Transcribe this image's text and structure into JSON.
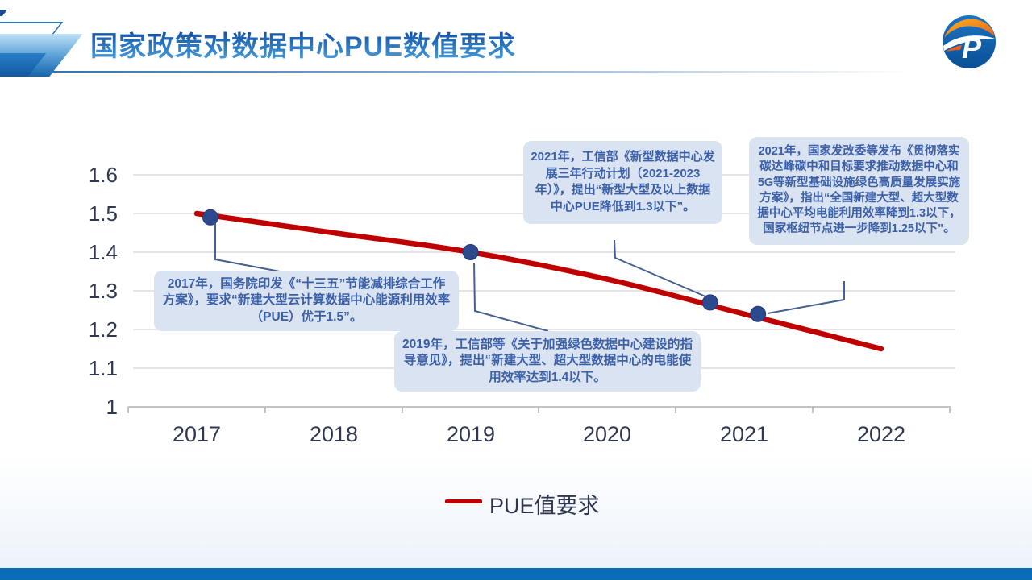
{
  "slide": {
    "title": "国家政策对数据中心PUE数值要求"
  },
  "colors": {
    "title_blue": "#1261ad",
    "line_red": "#c00000",
    "marker_blue": "#2d4a8e",
    "callout_bg": "#dae3f1",
    "callout_text": "#3c60a8",
    "connector_blue": "#46618f",
    "footer_bar_blue": "#0b6cb8"
  },
  "chart_data": {
    "type": "line",
    "title": "",
    "xlabel": "",
    "ylabel": "",
    "x_categories": [
      "2017",
      "2018",
      "2019",
      "2020",
      "2021",
      "2022"
    ],
    "y_ticks": [
      "1",
      "1.1",
      "1.2",
      "1.3",
      "1.4",
      "1.5",
      "1.6"
    ],
    "ylim": [
      1.0,
      1.6
    ],
    "grid": "horizontal",
    "legend_position": "bottom",
    "series": [
      {
        "name": "PUE值要求",
        "color": "#c00000",
        "x": [
          2017,
          2018,
          2019,
          2020,
          2021,
          2022
        ],
        "values": [
          1.5,
          1.45,
          1.4,
          1.33,
          1.24,
          1.15
        ]
      }
    ],
    "markers": [
      {
        "year": 2017.1,
        "value": 1.49
      },
      {
        "year": 2019.0,
        "value": 1.4
      },
      {
        "year": 2020.75,
        "value": 1.27
      },
      {
        "year": 2021.1,
        "value": 1.24
      }
    ],
    "annotations": [
      {
        "text": "2017年，国务院印发《“十三五”节能减排综合工作方案》，要求“新建大型云计算数据中心能源利用效率（PUE）优于1.5”。"
      },
      {
        "text": "2019年，工信部等《关于加强绿色数据中心建设的指导意见》，提出“新建大型、超大型数据中心的电能使用效率达到1.4以下。"
      },
      {
        "text": "2021年，工信部《新型数据中心发展三年行动计划（2021-2023年）》，提出“新型大型及以上数据中心PUE降低到1.3以下”。"
      },
      {
        "text": "2021年，国家发改委等发布《贯彻落实碳达峰碳中和目标要求推动数据中心和5G等新型基础设施绿色高质量发展实施方案》，指出“全国新建大型、超大型数据中心平均电能利用效率降到1.3以下，国家枢纽节点进一步降到1.25以下”。"
      }
    ]
  },
  "legend": {
    "label": "PUE值要求"
  }
}
